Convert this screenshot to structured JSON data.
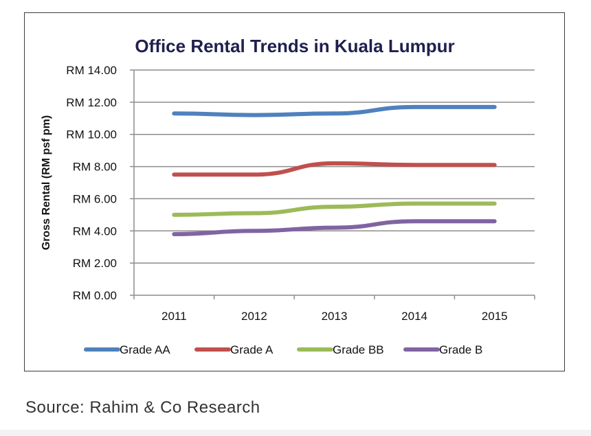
{
  "source": "Source: Rahim & Co Research",
  "chart_data": {
    "type": "line",
    "title": "Office Rental Trends in Kuala Lumpur",
    "xlabel": "",
    "ylabel": "Gross Rental (RM psf pm)",
    "categories": [
      "2011",
      "2012",
      "2013",
      "2014",
      "2015"
    ],
    "ylim": [
      0,
      14
    ],
    "ytick_values": [
      0,
      2,
      4,
      6,
      8,
      10,
      12,
      14
    ],
    "ytick_labels": [
      "RM 0.00",
      "RM 2.00",
      "RM 4.00",
      "RM 6.00",
      "RM 8.00",
      "RM 10.00",
      "RM 12.00",
      "RM 14.00"
    ],
    "grid": true,
    "legend_position": "bottom",
    "series": [
      {
        "name": "Grade AA",
        "color": "#4f81bd",
        "values": [
          11.3,
          11.2,
          11.3,
          11.7,
          11.7
        ]
      },
      {
        "name": "Grade A",
        "color": "#c0504d",
        "values": [
          7.5,
          7.5,
          8.2,
          8.1,
          8.1
        ]
      },
      {
        "name": "Grade BB",
        "color": "#9bbb59",
        "values": [
          5.0,
          5.1,
          5.5,
          5.7,
          5.7
        ]
      },
      {
        "name": "Grade B",
        "color": "#8064a2",
        "values": [
          3.8,
          4.0,
          4.2,
          4.6,
          4.6
        ]
      }
    ]
  }
}
